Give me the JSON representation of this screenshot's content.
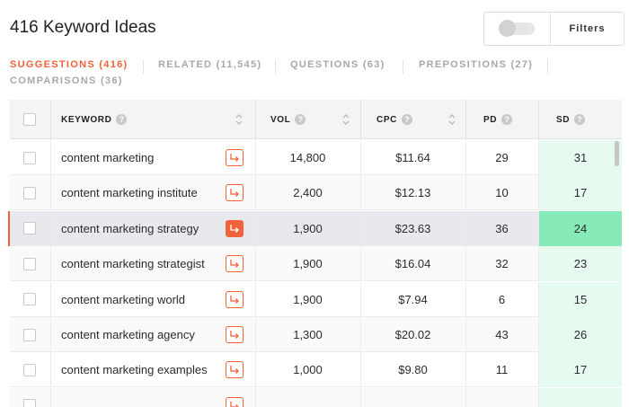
{
  "header": {
    "title": "416 Keyword Ideas",
    "filters_label": "Filters"
  },
  "tabs": [
    {
      "label": "SUGGESTIONS (416)",
      "active": true
    },
    {
      "label": "RELATED (11,545)",
      "active": false
    },
    {
      "label": "QUESTIONS (63)",
      "active": false
    },
    {
      "label": "PREPOSITIONS (27)",
      "active": false
    },
    {
      "label": "COMPARISONS (36)",
      "active": false
    }
  ],
  "table": {
    "columns": {
      "keyword": "KEYWORD",
      "vol": "VOL",
      "cpc": "CPC",
      "pd": "PD",
      "sd": "SD"
    },
    "info_glyph": "?",
    "rows": [
      {
        "keyword": "content marketing",
        "vol": "14,800",
        "cpc": "$11.64",
        "pd": "29",
        "sd": "31"
      },
      {
        "keyword": "content marketing institute",
        "vol": "2,400",
        "cpc": "$12.13",
        "pd": "10",
        "sd": "17"
      },
      {
        "keyword": "content marketing strategy",
        "vol": "1,900",
        "cpc": "$23.63",
        "pd": "36",
        "sd": "24",
        "highlighted": true
      },
      {
        "keyword": "content marketing strategist",
        "vol": "1,900",
        "cpc": "$16.04",
        "pd": "32",
        "sd": "23"
      },
      {
        "keyword": "content marketing world",
        "vol": "1,900",
        "cpc": "$7.94",
        "pd": "6",
        "sd": "15"
      },
      {
        "keyword": "content marketing agency",
        "vol": "1,300",
        "cpc": "$20.02",
        "pd": "43",
        "sd": "26"
      },
      {
        "keyword": "content marketing examples",
        "vol": "1,000",
        "cpc": "$9.80",
        "pd": "11",
        "sd": "17"
      }
    ]
  },
  "colors": {
    "accent": "#f0623a",
    "sd_column_bg": "#e6faef",
    "sd_highlight_bg": "#86ebb9",
    "header_bg": "#f3f4f6"
  },
  "icons": {
    "row_action": "arrow-right-icon",
    "sort": "sort-icon",
    "info": "info-icon"
  }
}
